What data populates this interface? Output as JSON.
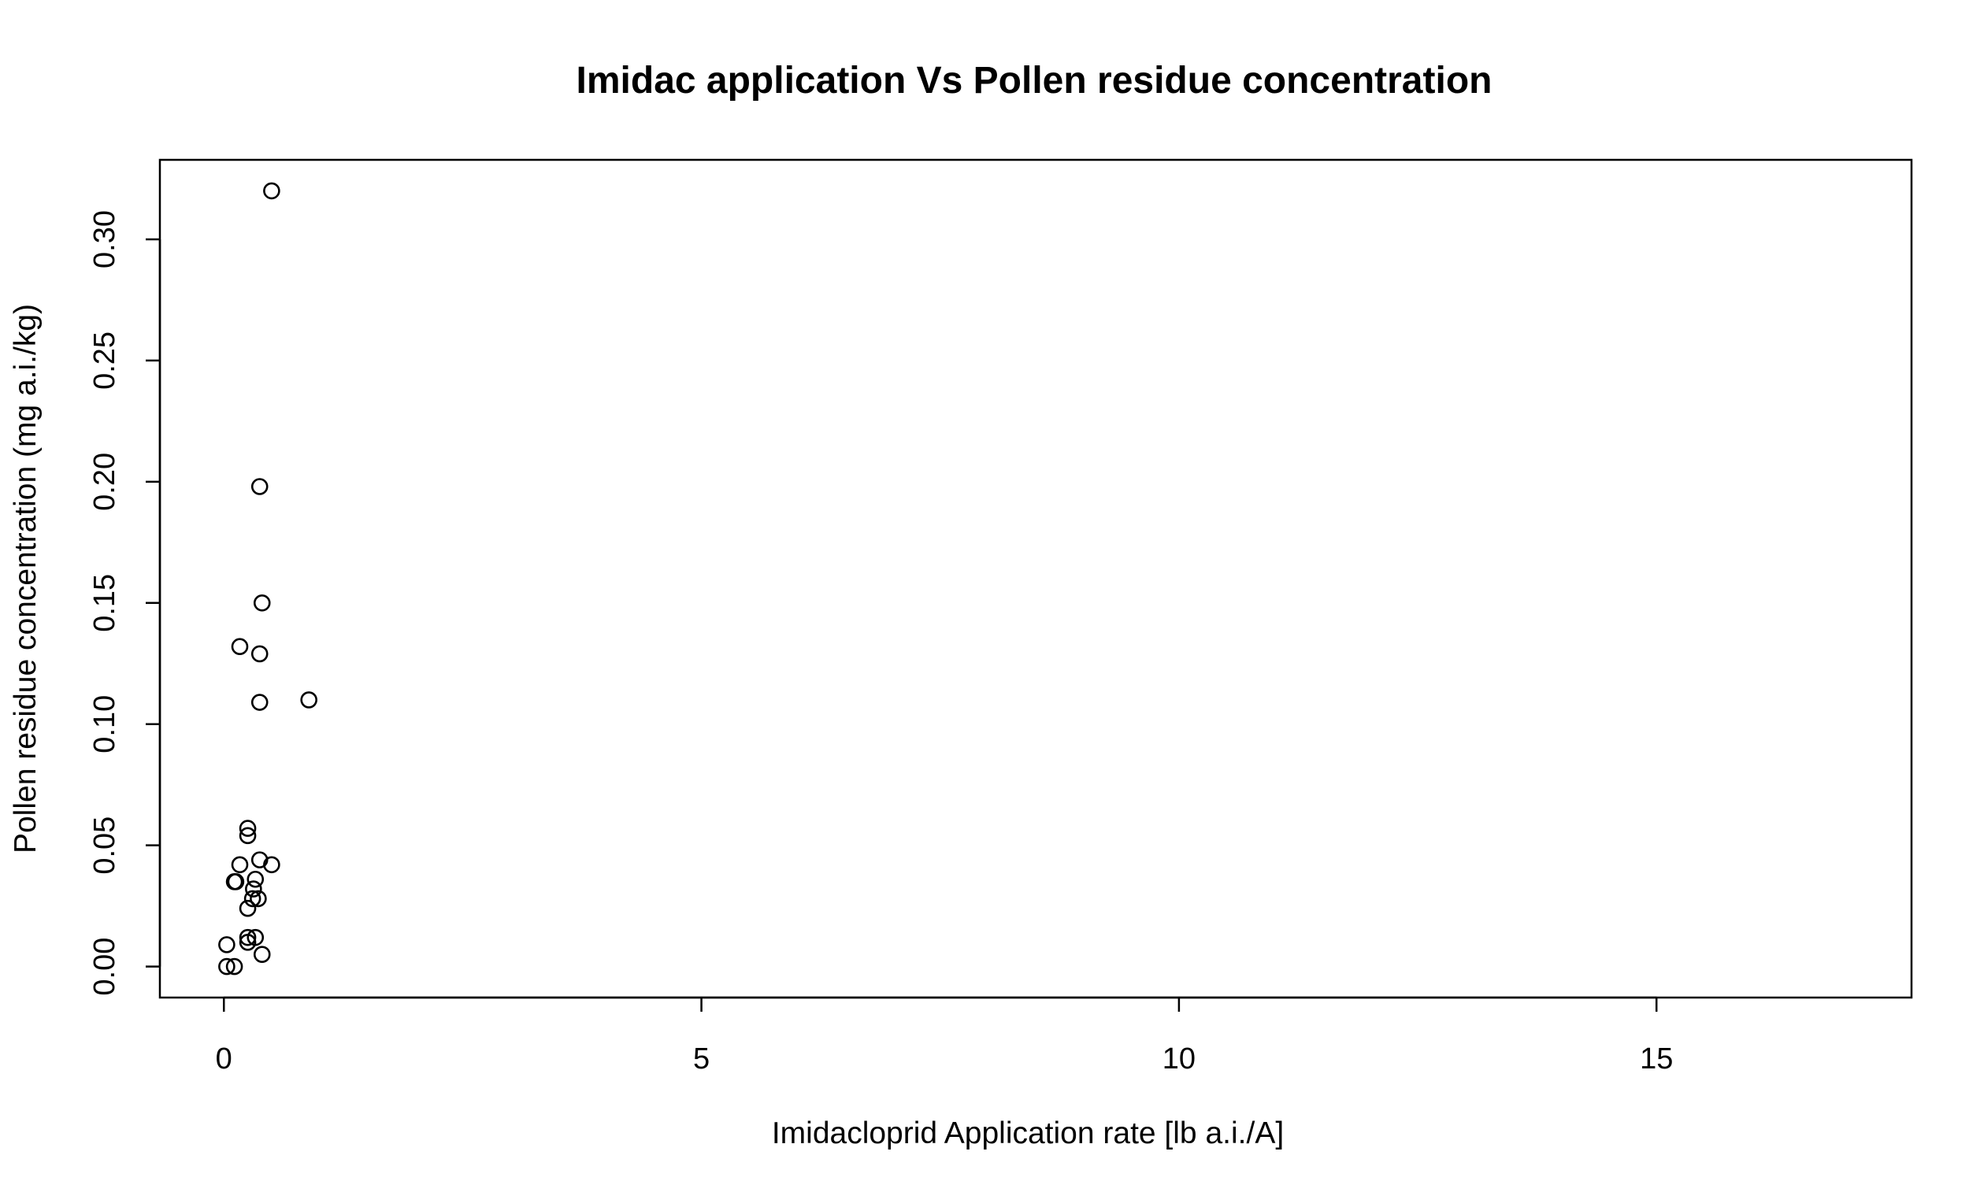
{
  "chart_data": {
    "type": "scatter",
    "title": "Imidac application Vs Pollen residue concentration",
    "xlabel": "Imidacloprid Application rate [lb a.i./A]",
    "ylabel": "Pollen residue concentration (mg a.i./kg)",
    "xlim": [
      -0.67,
      17.67
    ],
    "ylim": [
      -0.0128,
      0.3328
    ],
    "xticks": [
      0,
      5,
      10,
      15
    ],
    "xtick_labels": [
      "0",
      "5",
      "10",
      "15"
    ],
    "yticks": [
      0.0,
      0.05,
      0.1,
      0.15,
      0.2,
      0.25,
      0.3
    ],
    "ytick_labels": [
      "0.00",
      "0.05",
      "0.10",
      "0.15",
      "0.20",
      "0.25",
      "0.30"
    ],
    "grid": false,
    "legend": "none",
    "marker": "open-circle",
    "points": [
      {
        "x": 0.5,
        "y": 0.32
      },
      {
        "x": 0.375,
        "y": 0.198
      },
      {
        "x": 0.4,
        "y": 0.15
      },
      {
        "x": 0.167,
        "y": 0.132
      },
      {
        "x": 0.375,
        "y": 0.129
      },
      {
        "x": 0.375,
        "y": 0.109
      },
      {
        "x": 0.89,
        "y": 0.11
      },
      {
        "x": 0.25,
        "y": 0.057
      },
      {
        "x": 0.25,
        "y": 0.054
      },
      {
        "x": 0.375,
        "y": 0.044
      },
      {
        "x": 0.167,
        "y": 0.042
      },
      {
        "x": 0.5,
        "y": 0.042
      },
      {
        "x": 0.11,
        "y": 0.035
      },
      {
        "x": 0.125,
        "y": 0.035
      },
      {
        "x": 0.33,
        "y": 0.036
      },
      {
        "x": 0.31,
        "y": 0.032
      },
      {
        "x": 0.3,
        "y": 0.028
      },
      {
        "x": 0.36,
        "y": 0.028
      },
      {
        "x": 0.25,
        "y": 0.024
      },
      {
        "x": 0.25,
        "y": 0.012
      },
      {
        "x": 0.33,
        "y": 0.012
      },
      {
        "x": 0.25,
        "y": 0.01
      },
      {
        "x": 0.03,
        "y": 0.009
      },
      {
        "x": 0.4,
        "y": 0.005
      },
      {
        "x": 0.03,
        "y": 0.0
      },
      {
        "x": 0.11,
        "y": 0.0
      }
    ]
  }
}
